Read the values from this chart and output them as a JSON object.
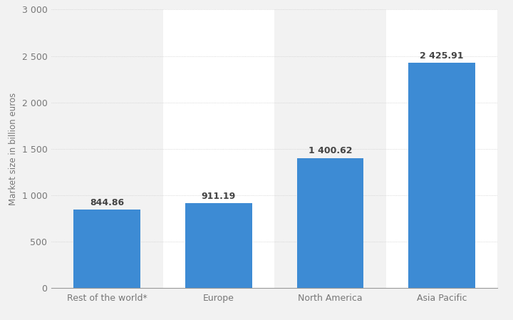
{
  "categories": [
    "Rest of the world*",
    "Europe",
    "North America",
    "Asia Pacific"
  ],
  "values": [
    844.86,
    911.19,
    1400.62,
    2425.91
  ],
  "labels": [
    "844.86",
    "911.19",
    "1 400.62",
    "2 425.91"
  ],
  "bar_color": "#3d8bd4",
  "background_color": "#f2f2f2",
  "plot_bg_odd": "#f2f2f2",
  "plot_bg_even": "#ffffff",
  "ylabel": "Market size in billion euros",
  "ylim": [
    0,
    3000
  ],
  "yticks": [
    0,
    500,
    1000,
    1500,
    2000,
    2500,
    3000
  ],
  "ytick_labels": [
    "0",
    "500",
    "1 000",
    "1 500",
    "2 000",
    "2 500",
    "3 000"
  ],
  "bar_width": 0.6,
  "label_fontsize": 9,
  "tick_fontsize": 9,
  "ylabel_fontsize": 8.5
}
